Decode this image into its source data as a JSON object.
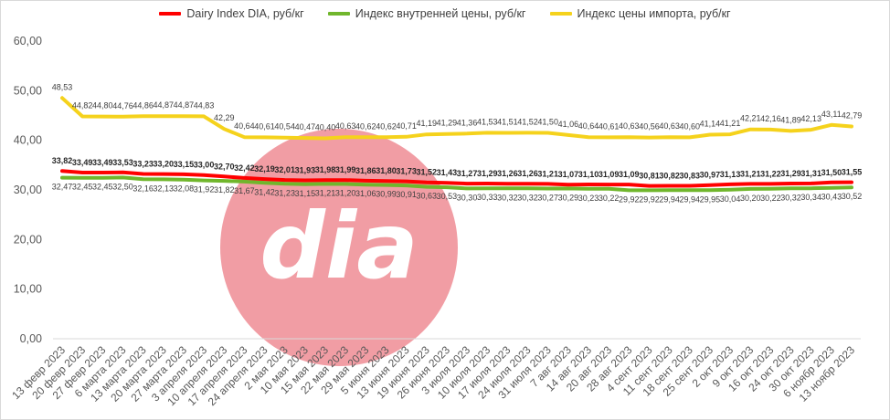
{
  "legend": {
    "dairy": "Dairy Index DIA, руб/кг",
    "domestic": "Индекс внутренней цены, руб/кг",
    "import": "Индекс цены импорта,  руб/кг"
  },
  "watermark": {
    "text": "DIA",
    "color": "#f0929a"
  },
  "chart_data": {
    "type": "line",
    "title": "",
    "xlabel": "",
    "ylabel": "",
    "ylim": [
      0,
      60
    ],
    "yticks": [
      "0,00",
      "10,00",
      "20,00",
      "30,00",
      "40,00",
      "50,00",
      "60,00"
    ],
    "grid": false,
    "legend_position": "top",
    "categories": [
      "13 февр 2023",
      "20 февр 2023",
      "27 февр 2023",
      "6 марта 2023",
      "13 марта 2023",
      "20 марта 2023",
      "27 марта 2023",
      "3 апреля 2023",
      "10 апреля 2023",
      "17 апреля 2023",
      "24 апреля 2023",
      "2 мая 2023",
      "10 мая 2023",
      "15 мая 2023",
      "22 мая 2023",
      "29 мая 2023",
      "5 июня 2023",
      "13 июня 2023",
      "19 июня 2023",
      "26 июня 2023",
      "3 июля 2023",
      "10 июля 2023",
      "17 июля 2023",
      "24 июля 2023",
      "31 июля 2023",
      "7 авг 2023",
      "14 авг 2023",
      "20 авг 2023",
      "28 авг 2023",
      "4 сент 2023",
      "11 сент 2023",
      "18 сент 2023",
      "25 сент 2023",
      "2 окт 2023",
      "9 окт 2023",
      "16 окт 2023",
      "24 окт 2023",
      "30 окт 2023",
      "6 ноябр 2023",
      "13 ноябр 2023"
    ],
    "series": [
      {
        "name": "Dairy Index DIA, руб/кг",
        "color": "#ff0000",
        "labels": [
          "33,82",
          "33,49",
          "33,49",
          "33,53",
          "33,23",
          "33,20",
          "33,15",
          "33,00",
          "32,70",
          "32,42",
          "32,19",
          "32,01",
          "31,93",
          "31,98",
          "31,99",
          "31,86",
          "31,80",
          "31,73",
          "31,52",
          "31,43",
          "31,27",
          "31,29",
          "31,26",
          "31,26",
          "31,21",
          "31,07",
          "31,10",
          "31,09",
          "31,09",
          "30,81",
          "30,82",
          "30,83",
          "30,97",
          "31,13",
          "31,21",
          "31,22",
          "31,29",
          "31,31",
          "31,50",
          "31,55"
        ]
      },
      {
        "name": "Индекс внутренней цены, руб/кг",
        "color": "#70b62c",
        "labels": [
          "32,47",
          "32,45",
          "32,45",
          "32,50",
          "32,16",
          "32,13",
          "32,08",
          "31,92",
          "31,82",
          "31,67",
          "31,42",
          "31,23",
          "31,15",
          "31,21",
          "31,20",
          "31,06",
          "30,99",
          "30,91",
          "30,63",
          "30,53",
          "30,30",
          "30,33",
          "30,32",
          "30,32",
          "30,27",
          "30,29",
          "30,23",
          "30,22",
          "29,92",
          "29,92",
          "29,94",
          "29,94",
          "29,95",
          "30,04",
          "30,20",
          "30,22",
          "30,32",
          "30,34",
          "30,43",
          "30,52"
        ]
      },
      {
        "name": "Индекс цены импорта,  руб/кг",
        "color": "#f5d21c",
        "labels": [
          "48,53",
          "44,82",
          "44,80",
          "44,76",
          "44,86",
          "44,87",
          "44,87",
          "44,83",
          "42,29",
          "40,64",
          "40,61",
          "40,54",
          "40,47",
          "40,40",
          "40,63",
          "40,62",
          "40,62",
          "40,71",
          "41,19",
          "41,29",
          "41,36",
          "41,53",
          "41,51",
          "41,52",
          "41,50",
          "41,06",
          "40,64",
          "40,61",
          "40,63",
          "40,56",
          "40,63",
          "40,60",
          "41,14",
          "41,21",
          "42,21",
          "42,16",
          "41,89",
          "42,13",
          "43,11",
          "42,79"
        ]
      }
    ]
  }
}
